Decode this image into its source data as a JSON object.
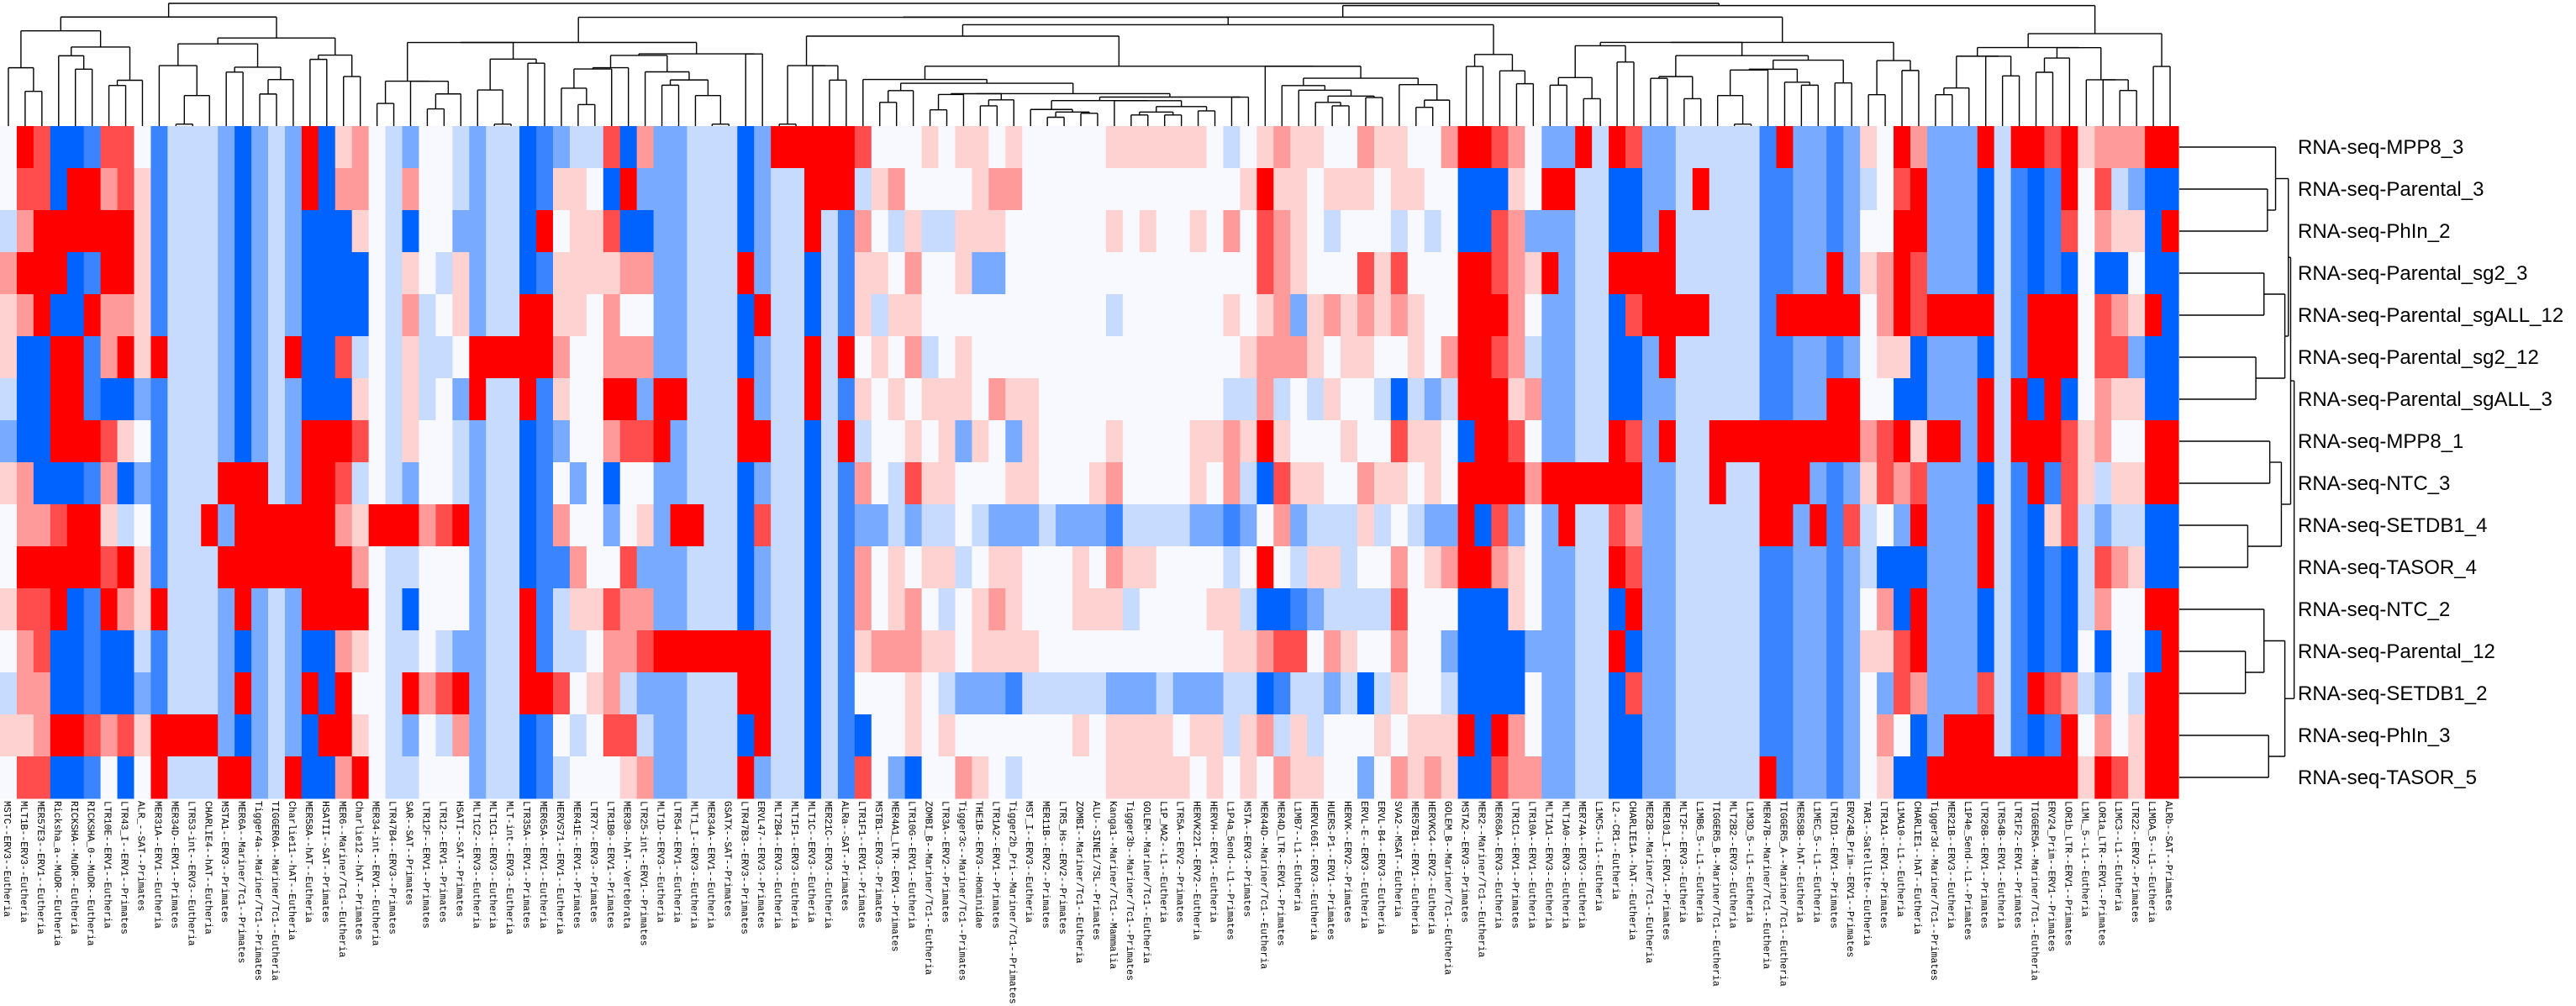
{
  "chart_data": {
    "type": "heatmap",
    "title": "",
    "xlabel": "",
    "ylabel": "",
    "color_scale": {
      "key": "levels A (most negative, blue) through E (neutral, white) to I (most positive, red)",
      "levels": {
        "A": -4,
        "B": -3,
        "C": -2,
        "D": -1,
        "E": 0,
        "F": 1,
        "G": 2,
        "H": 3,
        "I": 4
      },
      "colors": {
        "A": "#0062ff",
        "B": "#3a84ff",
        "C": "#78aaff",
        "D": "#c6dbff",
        "E": "#f7f9ff",
        "F": "#ffd2d2",
        "G": "#ff9a9a",
        "H": "#ff4c4c",
        "I": "#ff0000"
      }
    },
    "rows": [
      "RNA-seq-MPP8_3",
      "RNA-seq-Parental_3",
      "RNA-seq-PhIn_2",
      "RNA-seq-Parental_sg2_3",
      "RNA-seq-Parental_sgALL_12",
      "RNA-seq-Parental_sg2_12",
      "RNA-seq-Parental_sgALL_3",
      "RNA-seq-MPP8_1",
      "RNA-seq-NTC_3",
      "RNA-seq-SETDB1_4",
      "RNA-seq-TASOR_4",
      "RNA-seq-NTC_2",
      "RNA-seq-Parental_12",
      "RNA-seq-SETDB1_2",
      "RNA-seq-PhIn_3",
      "RNA-seq-TASOR_5"
    ],
    "columns": [
      "MSTC--ERV3--Eutheria",
      "MLT1B--ERV3--Eutheria",
      "MER57E3--ERV1--Eutheria",
      "Ricksha_a--MuDR--Eutheria",
      "RICKSHA--MuDR--Eutheria",
      "RICKSHA_0--MuDR--Eutheria",
      "LTR10E--ERV1--Eutheria",
      "LTR43_I--ERV1--Primates",
      "ALR_--SAT--Primates",
      "MER31A--ERV1--Eutheria",
      "MER34D--ERV1--Primates",
      "LTR53-int--ERV3--Eutheria",
      "CHARLIE4--hAT--Eutheria",
      "MSTA1--ERV3--Primates",
      "MER6A--Mariner/Tc1--Primates",
      "Tigger4a--Mariner/Tc1--Primates",
      "TIGGER6A--Mariner/Tc1--Eutheria",
      "Charlie11--hAT--Eutheria",
      "MER58A--hAT--Eutheria",
      "HSATII--SAT--Primates",
      "MER6--Mariner/Tc1--Eutheria",
      "Charlie12--hAT--Primates",
      "MER34-int--ERV1--Eutheria",
      "LTR47B4--ERV3--Primates",
      "SAR--SAT--Primates",
      "LTR12F--ERV1--Primates",
      "LTR12--ERV1--Primates",
      "HSATI--SAT--Primates",
      "MLT1C2--ERV3--Eutheria",
      "MLT1C1--ERV3--Eutheria",
      "MLT-int--ERV3--Eutheria",
      "LTR35A--ERV1--Primates",
      "MER65A--ERV1--Eutheria",
      "HERVS71--ERV1--Eutheria",
      "MER41E--ERV1--Primates",
      "LTR7Y--ERV3--Primates",
      "LTR1B0--ERV1--Primates",
      "MER30--hAT--Vertebrata",
      "LTR25-int--ERV1--Primates",
      "MLT1D--ERV3--Eutheria",
      "LTR54--ERV1--Eutheria",
      "MLT1_I--ERV3--Eutheria",
      "MER34A--ERV1--Eutheria",
      "GSATX--SAT--Primates",
      "LTR47B3--ERV3--Primates",
      "ERVL47--ERV3--Primates",
      "MLT2B4--ERV3--Eutheria",
      "MLT1F1--ERV3--Eutheria",
      "MLT1C--ERV3--Eutheria",
      "MER21C--ERV3--Eutheria",
      "ALRa--SAT--Primates",
      "LTR1F1--ERV1--Primates",
      "MSTB1--ERV3--Primates",
      "MER4A1_LTR--ERV1--Primates",
      "LTR10G--ERV1--Eutheria",
      "ZOMBI_B--Mariner/Tc1--Eutheria",
      "LTR3A--ERV2--Primates",
      "Tigger3c--Mariner/Tc1--Primates",
      "THE1B--ERV3--Hominidae",
      "LTR1A2--ERV1--Primates",
      "Tigger2b_Pri--Mariner/Tc1--Primates",
      "MST_I--ERV3--Eutheria",
      "MER11B--ERV2--Primates",
      "LTR5_Hs--ERV2--Primates",
      "ZOMBI--Mariner/Tc1--Eutheria",
      "ALU--SINE1/7SL--Primates",
      "Kanga1--Mariner/Tc1--Mammalia",
      "Tigger3b--Mariner/Tc1--Primates",
      "GOLEM--Mariner/Tc1--Eutheria",
      "L1P_MA2--L1--Eutheria",
      "LTR5A--ERV2--Primates",
      "HERVK22I--ERV2--Eutheria",
      "HERVH--ERV1--Eutheria",
      "L1P4a_5end--L1--Primates",
      "MSTA--ERV3--Primates",
      "MER44D--Mariner/Tc1--Eutheria",
      "MER4D_LTR--ERV1--Primates",
      "L1MB7--L1--Eutheria",
      "HERVL66I--ERV3--Eutheria",
      "HUERS-P1--ERV1--Primates",
      "HERVK--ERV2--Primates",
      "ERVL-E--ERV3--Eutheria",
      "ERVL-B4--ERV3--Eutheria",
      "SVA2--MSAT--Eutheria",
      "MER57B1--ERV1--Eutheria",
      "HERVKC4--ERV2--Eutheria",
      "GOLEM_B--Mariner/Tc1--Eutheria",
      "MSTA2--ERV3--Primates",
      "MER2--Mariner/Tc1--Eutheria",
      "MER68A--ERV3--Eutheria",
      "LTR1C1--ERV1--Primates",
      "LTR10A--ERV1--Eutheria",
      "MLT1A1--ERV3--Eutheria",
      "MLT1A0--ERV3--Eutheria",
      "MER74A--ERV3--Eutheria",
      "L1MC5--L1--Eutheria",
      "L2--CR1--Eutheria",
      "CHARLIE1A--hAT--Eutheria",
      "MER2B--Mariner/Tc1--Eutheria",
      "MER101_I--ERV1--Primates",
      "MLT2F--ERV3--Eutheria",
      "L1MB6_5--L1--Eutheria",
      "TIGGER5_B--Mariner/Tc1--Eutheria",
      "MLT2B2--ERV3--Eutheria",
      "L1M3D_5--L1--Eutheria",
      "MER47B--Mariner/Tc1--Eutheria",
      "TIGGER5_A--Mariner/Tc1--Eutheria",
      "MER58B--hAT--Eutheria",
      "L1MEC_5--L1--Eutheria",
      "LTR1D1--ERV1--Primates",
      "ERV24B_Prim--ERV1--Primates",
      "TAR1--Satellite--Eutheria",
      "LTR1A1--ERV1--Primates",
      "L1MA10--L1--Eutheria",
      "CHARLIE1--hAT--Eutheria",
      "Tigger3d--Mariner/Tc1--Primates",
      "MER21B--ERV3--Eutheria",
      "L1P4e_5end--L1--Primates",
      "LTR26B--ERV1--Primates",
      "LTR54B--ERV1--Eutheria",
      "LTR1F2--ERV1--Primates",
      "TIGGER5A--Mariner/Tc1--Eutheria",
      "ERV24_Prim--ERV1--Primates",
      "LOR1b_LTR--ERV1--Primates",
      "L1ML_5--L1--Eutheria",
      "LOR1a_LTR--ERV1--Primates",
      "L1MC3--L1--Eutheria",
      "LTR22--ERV2--Primates",
      "L1MDA_5--L1--Eutheria",
      "ALRb--SAT--Primates"
    ],
    "values": [
      "EIHAABHHEBDDDCACDCIAFG EDCEEDCDDABCDDHAGCCDDD ACIIIIIHEEEFEFFEFEEEEE FFFFFFEDEFGFFEEGFFEEGI IHGECCIDIHCCDDDDDBICCB CFEIGCCCIDIIHIFGGGII",
      "EHHAIIGHFBDDDCACDCIAGG EDGEEDCDDABFFEAICCCDDD ACDDIIIDFGEEEEFGGEEEEE EEEEEEEEFIFFEFFFEFFEEA AAFEIIDDAACCDIDDDBBCCB CDEHICCCADBABIEHDCAA",
      "DGIIIIIIFBDDDCACDCAAAF EDAEECCDDAIEFFHAACCDDD ACDDIDBGEDFDDFFFEEEEEE FEFEEFEGEHGFEDEEEDEDEA AHGCCCDDAACIDDDDDBBCCB CEEIICCCADBABHEGFFAI",
      "GIIIABIIFBDDDCACDCAAAA EDFEDFCDDABFFFFGGCCDDD ICDDADBFFEGEEFCCEEEEEE EEEEEEEEEHGFEEEHFHEEEI IHGFICDDIIIIDDDDDBBCCI CFGIHCCCADBABAEAAEAA",
      "FGIAAIGGFBDDDCACDCAAAA EDGDEFCDDIIFFEGEECCDDD AIDDADBFDFFEEEEEEEEEEE DEEEEEEFEFGCFGFGFGFEEI IIGECCDDAHIIIIDDDBIIII IEGIHIIIIDBIIIEHGFIA",
      "FAAIIBGIFIDDDCACDIAAHD EDFDDEIIIIIGEEGGGCCDDD ACDDIDIEFEGDEFEEEEEEEE EEEEEEEEFGGGFEFFEEFEGI IHGDCCDDAACIDDDDDBBCCB CEFFACCCADBIIIEHHCAA",
      "DAAIIBAACBDDDCACDCAAAF EDFDECIDDIBFEEIICIIDDD ICDDIDBFEFEFFFEGFFEEEE EEEEEEEDDGDEDFEEDADCDI IIFGCCDDAACCDDDDDBBCCI IEEAACCCIDIAIAEGFFAA",
      "CAAIIIHFEBDDDCACDCIIIH EDFEEDCDDABCEEGHHICDDD IIDDADIDEEFEFCFECFEEEE FEEEEFFGFIFEEEFEEHFFEA IIHECCDDIHCIDDIIIIIIII IGHIFIICIDIIIHFGEEII",
      "FGAAABGACBDDDIIIDCIIHD EDCEEDCDDABECEAEECCDDD ACDDADBGEDHFFEEEFFEEEF GEEEEFEGDAHFFEEGFFEFEI IIIGIIIIIICCDDIDDIIICB CFHGHCCCADBIBHFDFFII",
      "EGGHIIFDEBDDICIIIIIIGF IIIGHICDDABGEECEFCIIDD AHDDADBCCDCDDEDCCCDCCC BDDDDCCBCEGCDDDFDEDCCI AHCECIDDHGCCDDDDDIICIB HDECICCCIDBAFHDCDDAA",
      "EIIIIIHIFBDDDIIIIIIIIG EDDEEECDDABBGEEHCCCDDD ACDDADBGEFEFFDEFFEEEFE GFFEEEEDEIEDFFDEEGEFGI IGFECCDDIHCCDDDDDBBCCB CDAAACCCIDBABADHGFAA",
      "FHHIABIGFIDDDCICDCIIII EDAEEECDDIBDFFHGGCCDDD ACDDADBGEFGEDEFGFEEEFF FDEEEEFFDAABCDDDDHEEEA AAFECCDDAICCDDDDDBBCCB CEGAICCCADBABADGEEII",
      "EGHAABAADBDDDCACDCAAGF EDDEDCCDDIBDDEGGHIIIII IIDDADBFGGGFFEFFFFEEEE EEEEEEEFFGHHEGFEEGEECA AAACCCDDIACCDDDDDBBCCB CFFHICCCADBABAEAEEAI",
      "DGGAABAACBDDDCICDCIAIE EDIGHICDDIIHEFGDCCCDDD IIDDADBEEEFEDCCCBDDDDD CCCDCCCDDABDDCDADFEEDA AAAECCDDAHCCDDDDDBBCCB CECHGCCCHDBIHGDCEDII",
      "FFGIIHGHFIIIICACDCAIIF EDCEDGCDDABEDEHHDCCDDD AIDDADBAEEFEFEEEEEEEFE FFFFEFFDFGDFDEEEFEFFFI AIGECCDDAACCDDDDDBBCCB CEGEACIIIDBABIEGEFII",
      "EHHAABEAEIDDDIICDIAAGI EDDEEECDDABDEEEFGCCDDD ICDDADBHECAEEGFEDEEEEE FFFFFEFEFEGFFEECEGFGFA AHGGCCDDAACCDDDDDIBCCB CEFAAIIIIIIIIIFIHFII"
    ],
    "row_dendrogram": {
      "d": 0.99,
      "c": [
        {
          "d": 0.96,
          "c": [
            {
              "d": 0.94,
              "c": [
                {
                  "d": 0.83,
                  "c": [
                    0,
                    {
                      "d": 0.76,
                      "c": [
                        1,
                        2
                      ]
                    }
                  ]
                },
                {
                  "d": 0.91,
                  "c": [
                    {
                      "d": 0.73,
                      "c": [
                        3,
                        4
                      ]
                    },
                    {
                      "d": 0.66,
                      "c": [
                        5,
                        6
                      ]
                    }
                  ]
                }
              ]
            },
            {
              "d": 0.88,
              "c": [
                {
                  "d": 0.78,
                  "c": [
                    7,
                    8
                  ]
                },
                {
                  "d": 0.59,
                  "c": [
                    9,
                    10
                  ]
                }
              ]
            }
          ]
        },
        {
          "d": 0.91,
          "c": [
            {
              "d": 0.73,
              "c": [
                11,
                {
                  "d": 0.57,
                  "c": [
                    12,
                    13
                  ]
                }
              ]
            },
            {
              "d": 0.77,
              "c": [
                14,
                15
              ]
            }
          ]
        }
      ]
    },
    "column_dendrogram": "hierarchical clustering of columns",
    "legend": "none"
  }
}
